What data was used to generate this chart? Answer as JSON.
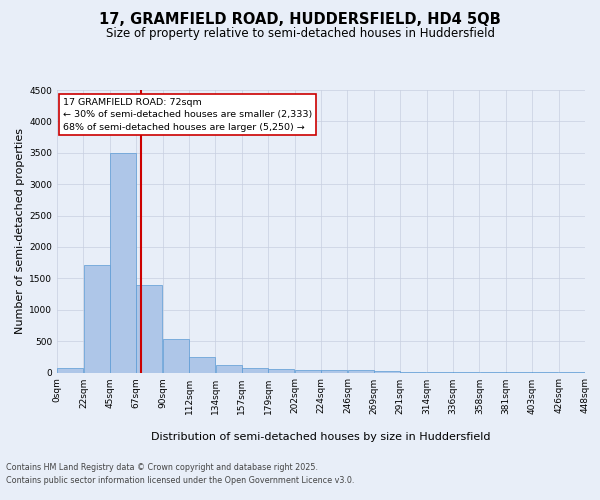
{
  "title_line1": "17, GRAMFIELD ROAD, HUDDERSFIELD, HD4 5QB",
  "title_line2": "Size of property relative to semi-detached houses in Huddersfield",
  "xlabel": "Distribution of semi-detached houses by size in Huddersfield",
  "ylabel": "Number of semi-detached properties",
  "annotation_title": "17 GRAMFIELD ROAD: 72sqm",
  "annotation_line2": "← 30% of semi-detached houses are smaller (2,333)",
  "annotation_line3": "68% of semi-detached houses are larger (5,250) →",
  "footer_line1": "Contains HM Land Registry data © Crown copyright and database right 2025.",
  "footer_line2": "Contains public sector information licensed under the Open Government Licence v3.0.",
  "property_size": 72,
  "bar_width": 22.5,
  "bin_starts": [
    0,
    22.5,
    45,
    67.5,
    90,
    112.5,
    135,
    157.5,
    180,
    202.5,
    225,
    247.5,
    270,
    292.5,
    315,
    337.5,
    360,
    382.5,
    405,
    427.5
  ],
  "bar_heights": [
    75,
    1720,
    3500,
    1390,
    535,
    240,
    120,
    65,
    50,
    45,
    40,
    35,
    25,
    15,
    10,
    5,
    5,
    3,
    2,
    1
  ],
  "bar_color": "#aec6e8",
  "bar_edge_color": "#5b9bd5",
  "vline_color": "#cc0000",
  "vline_x": 72,
  "ylim": [
    0,
    4500
  ],
  "yticks": [
    0,
    500,
    1000,
    1500,
    2000,
    2500,
    3000,
    3500,
    4000,
    4500
  ],
  "tick_labels": [
    "0sqm",
    "22sqm",
    "45sqm",
    "67sqm",
    "90sqm",
    "112sqm",
    "134sqm",
    "157sqm",
    "179sqm",
    "202sqm",
    "224sqm",
    "246sqm",
    "269sqm",
    "291sqm",
    "314sqm",
    "336sqm",
    "358sqm",
    "381sqm",
    "403sqm",
    "426sqm",
    "448sqm"
  ],
  "background_color": "#e8eef8",
  "plot_bg_color": "#e8eef8",
  "grid_color": "#c8cfe0",
  "title_fontsize": 10.5,
  "subtitle_fontsize": 8.5,
  "axis_label_fontsize": 8,
  "tick_fontsize": 6.5,
  "annotation_box_color": "#ffffff",
  "annotation_box_edge": "#cc0000"
}
